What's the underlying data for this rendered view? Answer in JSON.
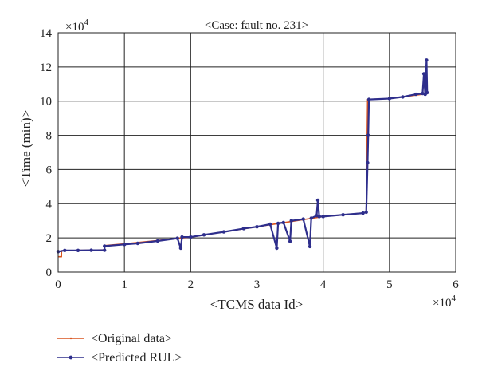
{
  "chart_data": {
    "type": "line",
    "title": "<Case: fault no. 231>",
    "xlabel": "<TCMS data Id>",
    "ylabel": "<Time (min)>",
    "x_multiplier": "×10",
    "x_multiplier_exp": "4",
    "y_multiplier": "×10",
    "y_multiplier_exp": "4",
    "xlim": [
      0,
      6
    ],
    "ylim": [
      0,
      14
    ],
    "xticks": [
      "0",
      "1",
      "2",
      "3",
      "4",
      "5",
      "6"
    ],
    "yticks": [
      "0",
      "2",
      "4",
      "6",
      "8",
      "10",
      "12",
      "14"
    ],
    "grid": true,
    "legend_position": "bottom-left",
    "series": [
      {
        "name": "<Original data>",
        "color": "#d9541e",
        "marker": "none",
        "points": [
          [
            0.0,
            0.9
          ],
          [
            0.05,
            0.9
          ],
          [
            0.05,
            1.25
          ],
          [
            0.7,
            1.3
          ],
          [
            0.7,
            1.55
          ],
          [
            1.0,
            1.65
          ],
          [
            1.5,
            1.85
          ],
          [
            2.0,
            2.05
          ],
          [
            2.5,
            2.35
          ],
          [
            3.0,
            2.65
          ],
          [
            3.5,
            2.95
          ],
          [
            4.0,
            3.25
          ],
          [
            4.6,
            3.45
          ],
          [
            4.65,
            3.5
          ],
          [
            4.67,
            10.1
          ],
          [
            5.0,
            10.15
          ],
          [
            5.5,
            10.4
          ],
          [
            5.57,
            10.45
          ]
        ]
      },
      {
        "name": "<Predicted RUL>",
        "color": "#2e2e8c",
        "marker": "dot",
        "points": [
          [
            0.0,
            1.2
          ],
          [
            0.1,
            1.27
          ],
          [
            0.3,
            1.27
          ],
          [
            0.5,
            1.28
          ],
          [
            0.7,
            1.28
          ],
          [
            0.7,
            1.52
          ],
          [
            1.0,
            1.62
          ],
          [
            1.2,
            1.68
          ],
          [
            1.5,
            1.82
          ],
          [
            1.8,
            1.98
          ],
          [
            1.85,
            1.4
          ],
          [
            1.87,
            2.05
          ],
          [
            2.0,
            2.05
          ],
          [
            2.2,
            2.18
          ],
          [
            2.5,
            2.35
          ],
          [
            2.8,
            2.55
          ],
          [
            3.0,
            2.65
          ],
          [
            3.2,
            2.8
          ],
          [
            3.3,
            1.4
          ],
          [
            3.32,
            2.85
          ],
          [
            3.4,
            2.9
          ],
          [
            3.5,
            1.8
          ],
          [
            3.52,
            3.0
          ],
          [
            3.7,
            3.1
          ],
          [
            3.8,
            1.5
          ],
          [
            3.82,
            3.15
          ],
          [
            3.9,
            3.3
          ],
          [
            3.92,
            4.2
          ],
          [
            3.94,
            3.25
          ],
          [
            4.0,
            3.25
          ],
          [
            4.3,
            3.35
          ],
          [
            4.6,
            3.45
          ],
          [
            4.65,
            3.5
          ],
          [
            4.67,
            6.4
          ],
          [
            4.68,
            8.0
          ],
          [
            4.69,
            10.1
          ],
          [
            5.0,
            10.15
          ],
          [
            5.2,
            10.25
          ],
          [
            5.4,
            10.4
          ],
          [
            5.5,
            10.45
          ],
          [
            5.52,
            11.6
          ],
          [
            5.54,
            10.4
          ],
          [
            5.56,
            12.4
          ],
          [
            5.57,
            10.5
          ]
        ]
      }
    ]
  }
}
